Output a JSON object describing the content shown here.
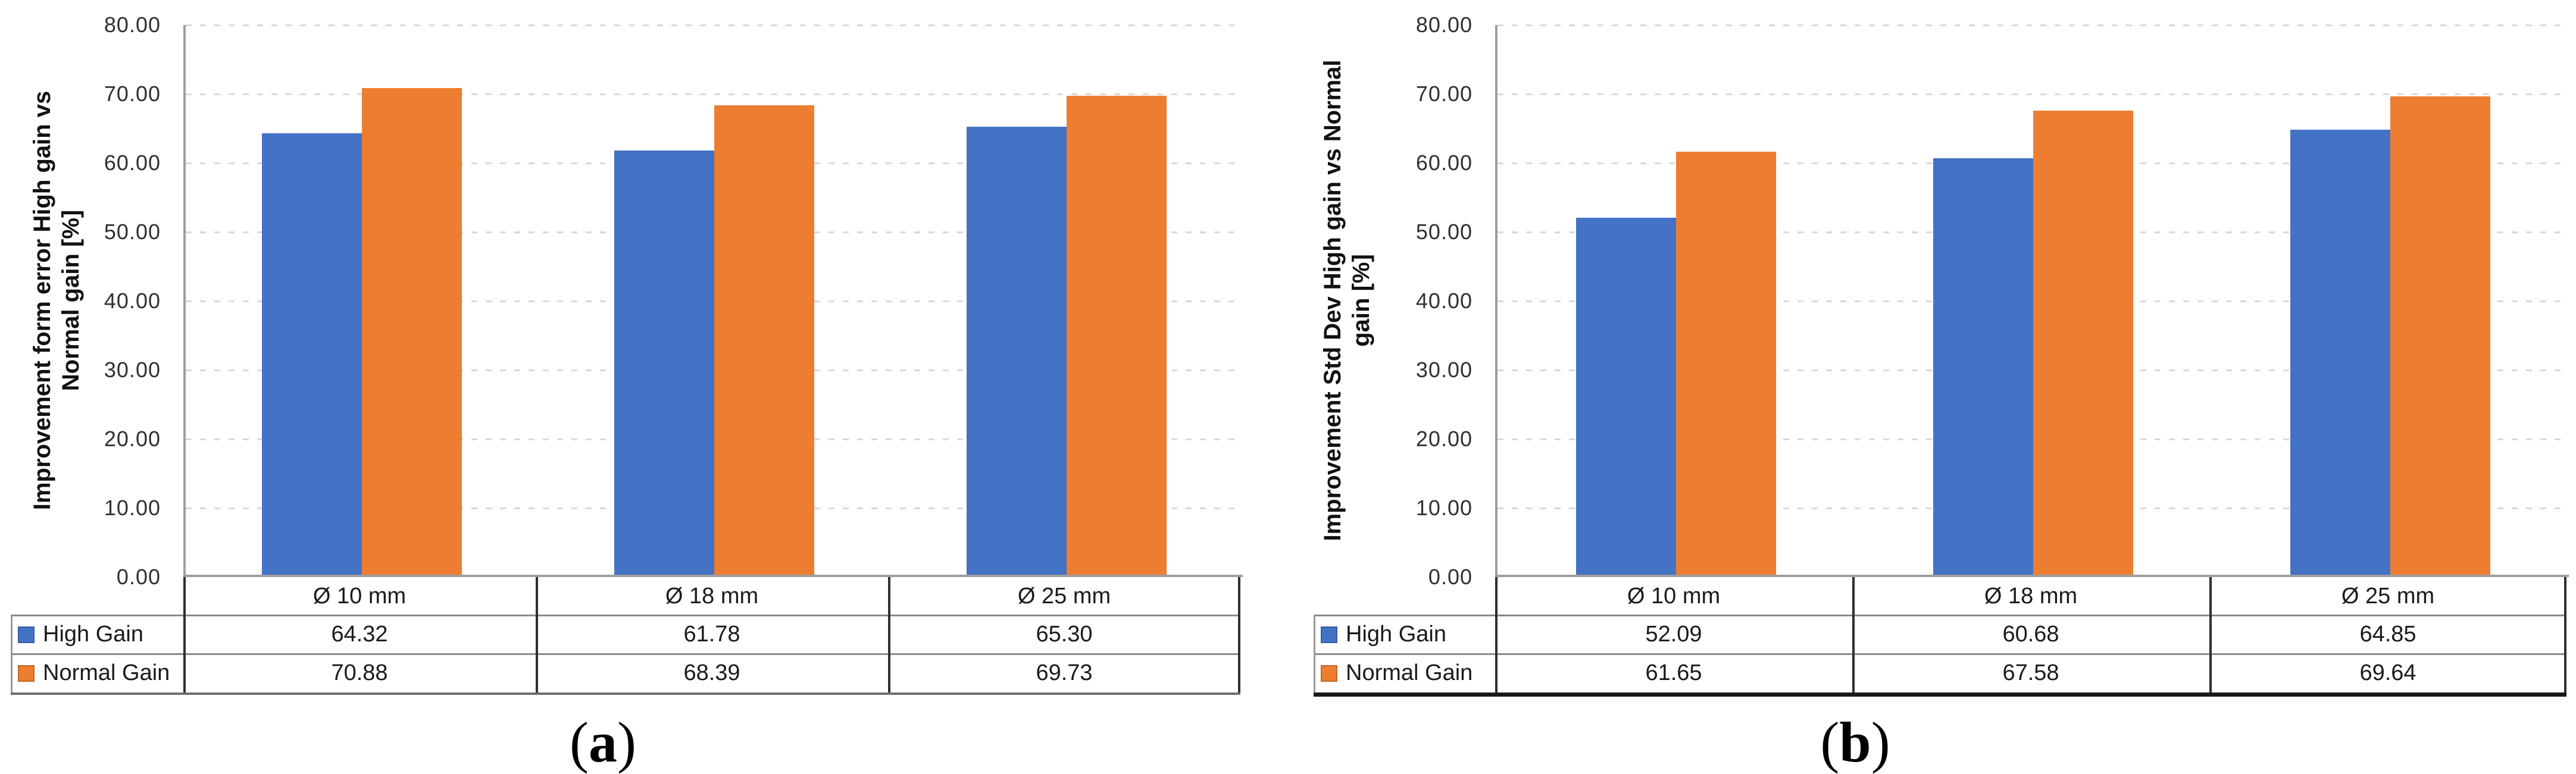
{
  "chart_data": [
    {
      "type": "bar",
      "panel_label": {
        "open": "(",
        "letter": "a",
        "close": ")"
      },
      "ylabel_line1": "Improvement form error High gain vs",
      "ylabel_line2": "Normal gain [%]",
      "ylabel_full": "Improvement form error High gain vs Normal gain [%]",
      "categories": [
        "Ø 10 mm",
        "Ø 18 mm",
        "Ø 25 mm"
      ],
      "series": [
        {
          "name": "High Gain",
          "color": "#4472C4",
          "values": [
            64.32,
            61.78,
            65.3
          ],
          "labels": [
            "64.32",
            "61.78",
            "65.30"
          ]
        },
        {
          "name": "Normal Gain",
          "color": "#ED7D31",
          "values": [
            70.88,
            68.39,
            69.73
          ],
          "labels": [
            "70.88",
            "68.39",
            "69.73"
          ]
        }
      ],
      "ylim": [
        0,
        80
      ],
      "ytick_step": 10,
      "yticks_top_to_bottom": [
        "80.00",
        "70.00",
        "60.00",
        "50.00",
        "40.00",
        "30.00",
        "20.00",
        "10.00",
        "0.00"
      ],
      "grid": "horizontal-dashed",
      "legend_position": "table-left"
    },
    {
      "type": "bar",
      "panel_label": {
        "open": "(",
        "letter": "b",
        "close": ")"
      },
      "ylabel_line1": "Improvement Std Dev High gain vs Normal",
      "ylabel_line2": "gain [%]",
      "ylabel_full": "Improvement Std Dev High gain vs Normal gain [%]",
      "categories": [
        "Ø 10 mm",
        "Ø 18 mm",
        "Ø 25 mm"
      ],
      "series": [
        {
          "name": "High Gain",
          "color": "#4472C4",
          "values": [
            52.09,
            60.68,
            64.85
          ],
          "labels": [
            "52.09",
            "60.68",
            "64.85"
          ]
        },
        {
          "name": "Normal Gain",
          "color": "#ED7D31",
          "values": [
            61.65,
            67.58,
            69.64
          ],
          "labels": [
            "61.65",
            "67.58",
            "69.64"
          ]
        }
      ],
      "ylim": [
        0,
        80
      ],
      "ytick_step": 10,
      "yticks_top_to_bottom": [
        "80.00",
        "70.00",
        "60.00",
        "50.00",
        "40.00",
        "30.00",
        "20.00",
        "10.00",
        "0.00"
      ],
      "grid": "horizontal-dashed",
      "legend_position": "table-left"
    }
  ]
}
